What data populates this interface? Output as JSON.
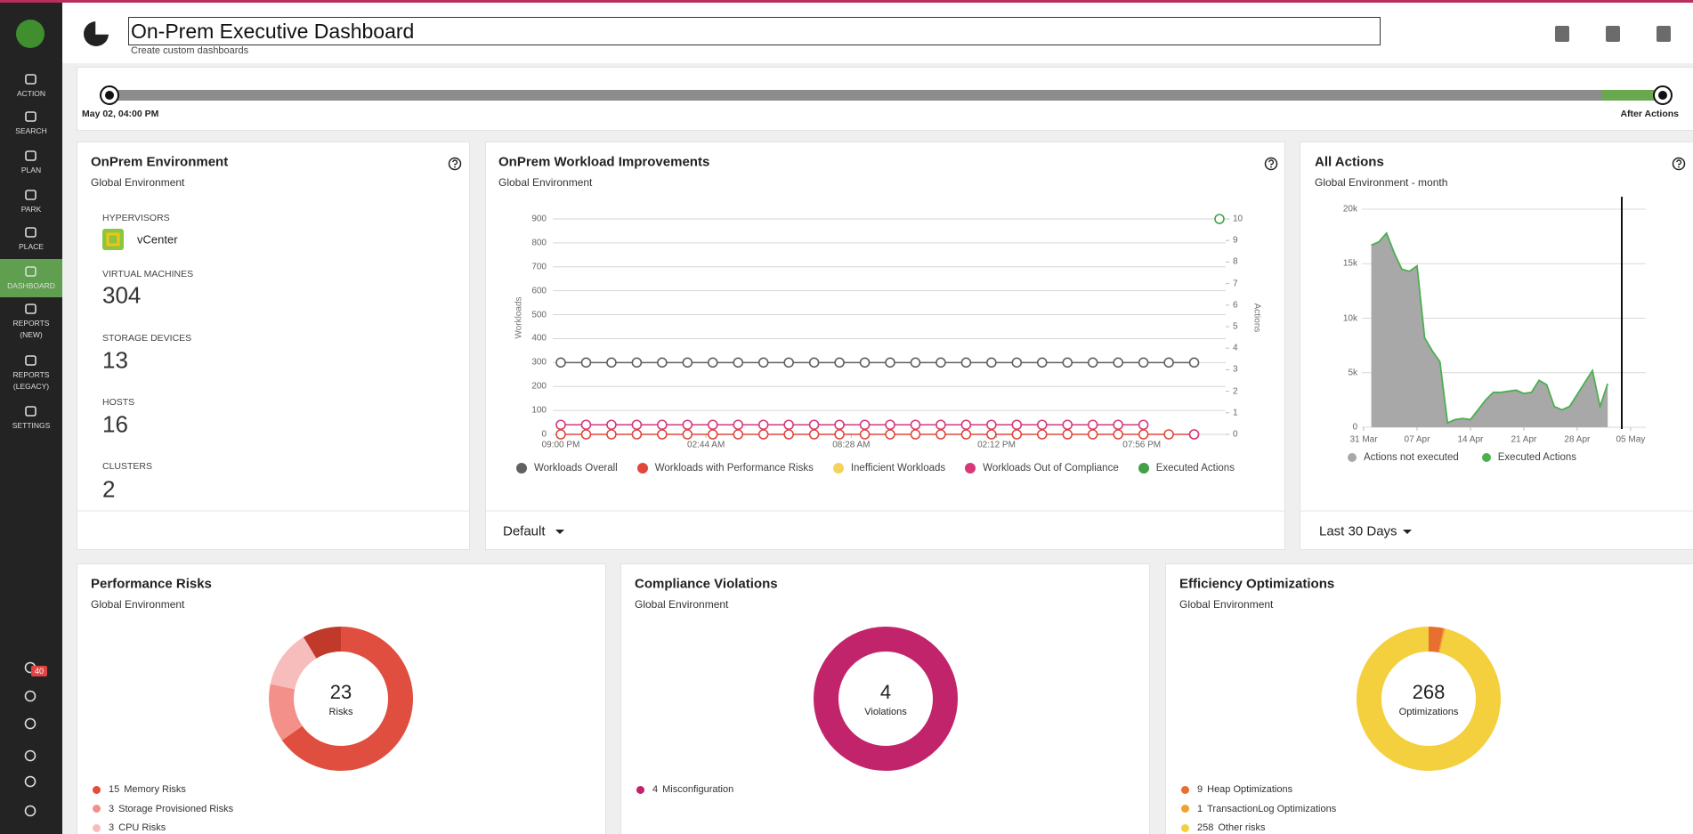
{
  "sidebar": {
    "logo": "on",
    "items": [
      "ACTION",
      "SEARCH",
      "PLAN",
      "PARK",
      "PLACE",
      "DASHBOARD",
      "REPORTS (NEW)",
      "REPORTS (LEGACY)",
      "SETTINGS"
    ],
    "active_item": 5,
    "notification_count": 40
  },
  "header": {
    "title": "On-Prem Executive Dashboard",
    "subtitle": "Create custom dashboards"
  },
  "timeline": {
    "start_label": "May 02, 04:00 PM",
    "end_label": "After Actions"
  },
  "environment": {
    "title": "OnPrem Environment",
    "subtitle": "Global Environment",
    "stats": [
      {
        "label": "HYPERVISORS",
        "value": "vCenter"
      },
      {
        "label": "VIRTUAL MACHINES",
        "value": 304
      },
      {
        "label": "STORAGE DEVICES",
        "value": 13
      },
      {
        "label": "HOSTS",
        "value": 16
      },
      {
        "label": "CLUSTERS",
        "value": 2
      }
    ]
  },
  "workload_chart": {
    "type": "line",
    "title": "OnPrem Workload Improvements",
    "subtitle": "Global Environment",
    "y_label": "Workloads",
    "y2_label": "Actions",
    "x": [
      0,
      1,
      2,
      3,
      4,
      5,
      6,
      7,
      8,
      9,
      10,
      11,
      12,
      13,
      14,
      15,
      16,
      17,
      18,
      19,
      20,
      21,
      22,
      23,
      24,
      25,
      26
    ],
    "xlim": [
      0,
      26
    ],
    "xticks": [
      {
        "value": 0,
        "label": "09:00 PM"
      },
      {
        "value": 5.733,
        "label": "02:44 AM"
      },
      {
        "value": 11.467,
        "label": "08:28 AM"
      },
      {
        "value": 17.2,
        "label": "02:12 PM"
      },
      {
        "value": 22.933,
        "label": "07:56 PM"
      }
    ],
    "ylim": [
      0,
      900
    ],
    "yticks": [
      0,
      100,
      200,
      300,
      400,
      500,
      600,
      700,
      800,
      900
    ],
    "y2lim": [
      0,
      10
    ],
    "y2ticks": [
      0,
      1,
      2,
      3,
      4,
      5,
      6,
      7,
      8,
      9,
      10
    ],
    "grid": true,
    "series": [
      {
        "name": "Workloads Overall",
        "color": "#616161",
        "values": [
          300,
          300,
          300,
          300,
          300,
          300,
          300,
          300,
          300,
          300,
          300,
          300,
          300,
          300,
          300,
          300,
          300,
          300,
          300,
          300,
          300,
          300,
          300,
          300,
          300,
          300,
          null
        ]
      },
      {
        "name": "Workloads with Performance Risks",
        "color": "#e0483b",
        "values": [
          0,
          0,
          0,
          0,
          0,
          0,
          0,
          0,
          0,
          0,
          0,
          0,
          0,
          0,
          0,
          0,
          0,
          0,
          0,
          0,
          0,
          0,
          0,
          0,
          0,
          0,
          null
        ]
      },
      {
        "name": "Inefficient Workloads",
        "color": "#f5d35a",
        "values": [
          null,
          null,
          null,
          null,
          null,
          null,
          null,
          null,
          null,
          null,
          null,
          null,
          null,
          null,
          null,
          null,
          null,
          null,
          null,
          null,
          null,
          null,
          null,
          null,
          null,
          null,
          null
        ]
      },
      {
        "name": "Workloads Out of Compliance",
        "color": "#d6387a",
        "values": [
          40,
          40,
          40,
          40,
          40,
          40,
          40,
          40,
          40,
          40,
          40,
          40,
          40,
          40,
          40,
          40,
          40,
          40,
          40,
          40,
          40,
          40,
          40,
          40,
          null,
          0,
          null
        ]
      },
      {
        "name": "Executed Actions",
        "color": "#43a047",
        "axis": "y2",
        "values": [
          null,
          null,
          null,
          null,
          null,
          null,
          null,
          null,
          null,
          null,
          null,
          null,
          null,
          null,
          null,
          null,
          null,
          null,
          null,
          null,
          null,
          null,
          null,
          null,
          null,
          null,
          10
        ]
      }
    ],
    "scope": "Default"
  },
  "actions_chart": {
    "type": "area",
    "title": "All Actions",
    "subtitle": "Global Environment - month",
    "x": [
      1,
      2,
      3,
      4,
      5,
      6,
      7,
      8,
      9,
      10,
      11,
      12,
      13,
      14,
      15,
      16,
      17,
      18,
      19,
      20,
      21,
      22,
      23,
      24,
      25,
      26,
      27,
      28,
      29,
      30,
      31,
      32
    ],
    "xlim": [
      0,
      37
    ],
    "xticks": [
      {
        "value": 0,
        "label": "31 Mar"
      },
      {
        "value": 7,
        "label": "07 Apr"
      },
      {
        "value": 14,
        "label": "14 Apr"
      },
      {
        "value": 21,
        "label": "21 Apr"
      },
      {
        "value": 28,
        "label": "28 Apr"
      },
      {
        "value": 35,
        "label": "05 May"
      }
    ],
    "ylim": [
      0,
      20000
    ],
    "yticks": [
      0,
      {
        "value": 5000,
        "label": "5k"
      },
      {
        "value": 10000,
        "label": "10k"
      },
      {
        "value": 15000,
        "label": "15k"
      },
      {
        "value": 20000,
        "label": "20k"
      }
    ],
    "grid": true,
    "series": [
      {
        "name": "Actions not executed",
        "color": "#a8a8a8",
        "style": "area",
        "values": [
          16700,
          17000,
          17800,
          16000,
          14500,
          14300,
          14800,
          8200,
          7000,
          6000,
          400,
          700,
          800,
          700,
          1600,
          2500,
          3200,
          3200,
          3300,
          3400,
          3100,
          3200,
          4300,
          3900,
          1900,
          1600,
          1900,
          3000,
          4100,
          5200,
          1900,
          4000
        ]
      },
      {
        "name": "Executed Actions",
        "color": "#4caf50",
        "style": "line",
        "values": [
          16700,
          17000,
          17800,
          16000,
          14500,
          14300,
          14800,
          8200,
          7000,
          6000,
          400,
          700,
          800,
          700,
          1600,
          2500,
          3200,
          3200,
          3300,
          3400,
          3100,
          3200,
          4300,
          3900,
          1900,
          1600,
          1900,
          3000,
          4100,
          5200,
          1900,
          4000
        ]
      }
    ],
    "scope": "Last 30 Days"
  },
  "donuts": [
    {
      "type": "donut",
      "title": "Performance Risks",
      "subtitle": "Global Environment",
      "total": 23,
      "total_label": "Risks",
      "segments": [
        {
          "name": "Memory Risks",
          "value": 15,
          "color": "#e04e3f"
        },
        {
          "name": "Storage Provisioned Risks",
          "value": 3,
          "color": "#f29089"
        },
        {
          "name": "CPU Risks",
          "value": 3,
          "color": "#f7bcbc"
        },
        {
          "name": null,
          "value": 2,
          "color": "#c0392b"
        }
      ]
    },
    {
      "type": "donut",
      "title": "Compliance Violations",
      "subtitle": "Global Environment",
      "total": 4,
      "total_label": "Violations",
      "segments": [
        {
          "name": "Misconfiguration",
          "value": 4,
          "color": "#c2246b"
        }
      ]
    },
    {
      "type": "donut",
      "title": "Efficiency Optimizations",
      "subtitle": "Global Environment",
      "total": 268,
      "total_label": "Optimizations",
      "segments": [
        {
          "name": "Heap Optimizations",
          "value": 9,
          "color": "#e8702f"
        },
        {
          "name": "TransactionLog Optimizations",
          "value": 1,
          "color": "#f0a22e"
        },
        {
          "name": "Other risks",
          "value": 258,
          "color": "#f4cf3e"
        }
      ]
    }
  ]
}
